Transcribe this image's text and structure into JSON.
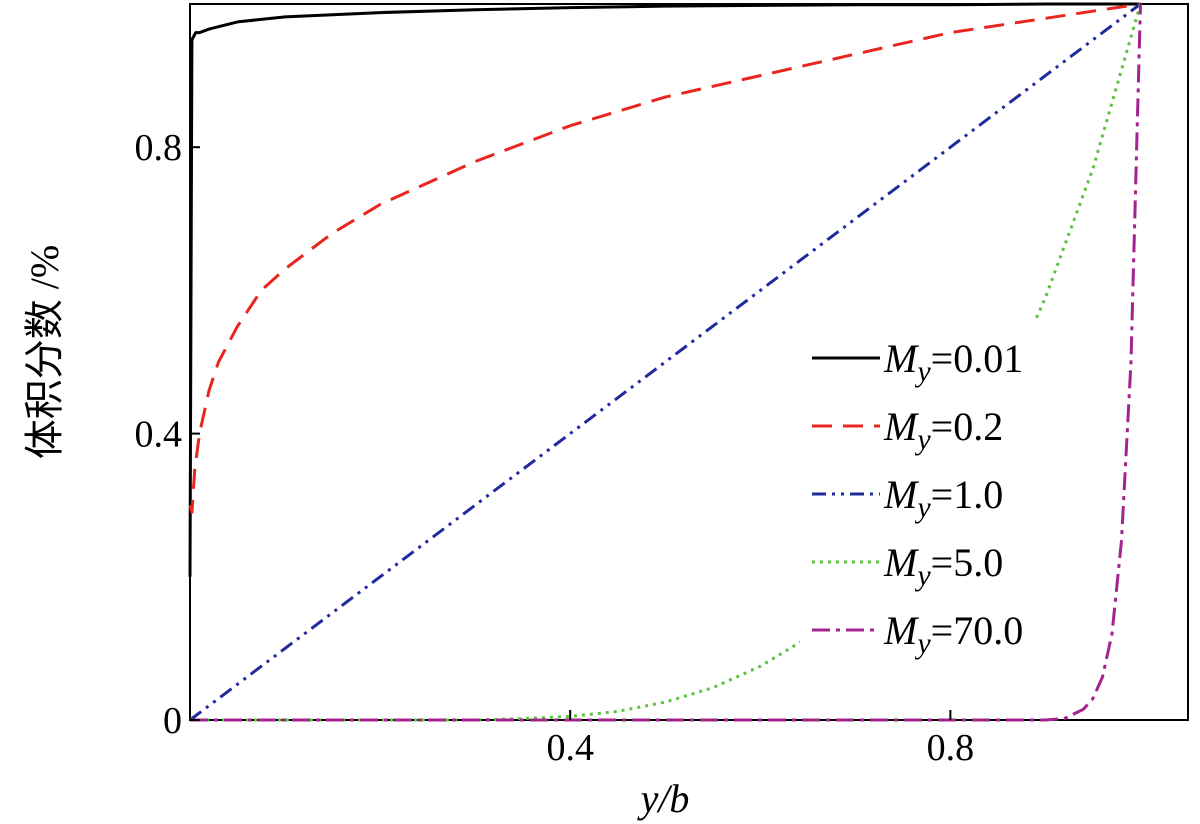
{
  "chart_data": {
    "type": "line",
    "xlabel": "y/b",
    "ylabel": "体积分数 /%",
    "xlim": [
      0,
      1.05
    ],
    "ylim": [
      0,
      1.0
    ],
    "xticks": [
      0.4,
      0.8
    ],
    "yticks": [
      0,
      0.4,
      0.8
    ],
    "xtick_labels": [
      "0.4",
      "0.8"
    ],
    "ytick_labels": [
      "0",
      "0.4",
      "0.8"
    ],
    "grid": false,
    "legend_position": "right",
    "series": [
      {
        "name": "M_y=0.01",
        "label_symbol": "M",
        "label_sub": "y",
        "label_value": "=0.01",
        "style": "solid",
        "color": "#000000",
        "x": [
          0,
          0.002,
          0.006,
          0.01,
          0.02,
          0.05,
          0.1,
          0.2,
          0.3,
          0.4,
          0.5,
          0.6,
          0.7,
          0.8,
          0.9,
          1.0
        ],
        "y": [
          0.2,
          0.95,
          0.96,
          0.96,
          0.965,
          0.975,
          0.982,
          0.988,
          0.992,
          0.995,
          0.997,
          0.998,
          0.999,
          0.999,
          1.0,
          1.0
        ]
      },
      {
        "name": "M_y=0.2",
        "label_symbol": "M",
        "label_sub": "y",
        "label_value": "=0.2",
        "style": "dashed",
        "color": "#e8251f",
        "x": [
          0,
          0.002,
          0.005,
          0.01,
          0.02,
          0.03,
          0.05,
          0.075,
          0.1,
          0.15,
          0.2,
          0.3,
          0.4,
          0.5,
          0.6,
          0.7,
          0.8,
          0.9,
          1.0
        ],
        "y": [
          0.3,
          0.29,
          0.35,
          0.4,
          0.46,
          0.5,
          0.55,
          0.6,
          0.63,
          0.68,
          0.72,
          0.78,
          0.83,
          0.87,
          0.9,
          0.93,
          0.96,
          0.98,
          1.0
        ]
      },
      {
        "name": "M_y=1.0",
        "label_symbol": "M",
        "label_sub": "y",
        "label_value": "=1.0",
        "style": "dashdotdot",
        "color": "#1f2b9c",
        "x": [
          0,
          1.0
        ],
        "y": [
          0,
          1.0
        ]
      },
      {
        "name": "M_y=5.0",
        "label_symbol": "M",
        "label_sub": "y",
        "label_value": "=5.0",
        "style": "dotted",
        "color": "#5cc23f",
        "x": [
          0,
          0.3,
          0.35,
          0.4,
          0.45,
          0.5,
          0.55,
          0.6,
          0.65,
          0.68,
          0.7,
          0.75,
          0.8,
          0.85,
          0.9,
          0.95,
          1.0
        ],
        "y": [
          0,
          0,
          0.002,
          0.005,
          0.012,
          0.025,
          0.045,
          0.075,
          0.115,
          0.145,
          0.17,
          0.24,
          0.33,
          0.44,
          0.59,
          0.77,
          1.0
        ]
      },
      {
        "name": "M_y=70.0",
        "label_symbol": "M",
        "label_sub": "y",
        "label_value": "=70.0",
        "style": "dashdot",
        "color": "#a3248f",
        "x": [
          0,
          0.9,
          0.92,
          0.94,
          0.95,
          0.96,
          0.97,
          0.98,
          0.99,
          1.0
        ],
        "y": [
          0,
          0,
          0.002,
          0.015,
          0.03,
          0.06,
          0.12,
          0.25,
          0.5,
          1.0
        ]
      }
    ]
  }
}
